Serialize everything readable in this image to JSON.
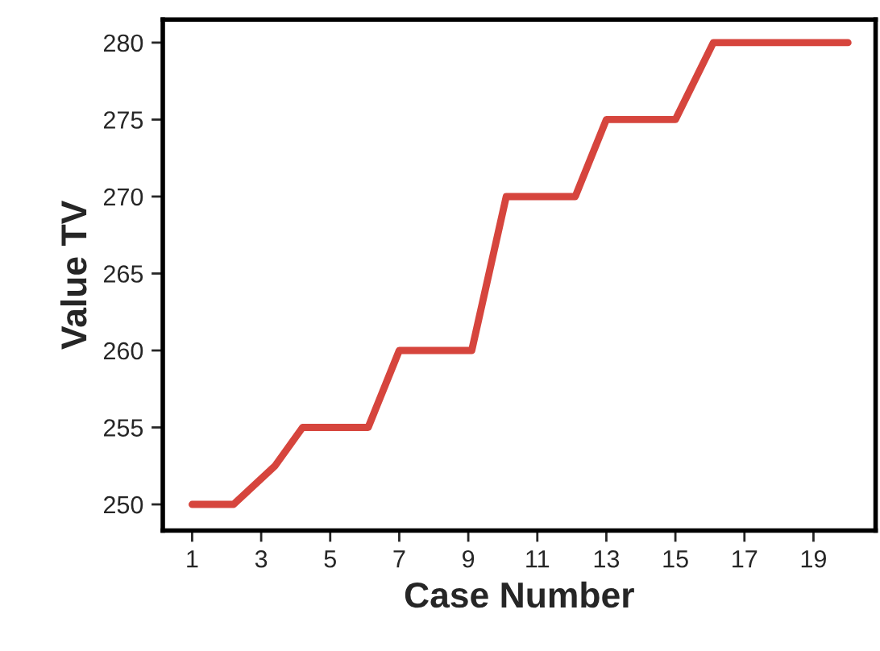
{
  "chart_data": {
    "type": "line",
    "xlabel": "Case Number",
    "ylabel": "Value TV",
    "x": [
      1,
      2.2,
      3.4,
      4.2,
      6.1,
      7,
      9.1,
      10.1,
      12.1,
      13,
      15,
      16.1,
      20
    ],
    "series": [
      {
        "color": "#d6453d",
        "values": [
          250,
          250,
          252.5,
          255,
          255,
          260,
          260,
          270,
          270,
          275,
          275,
          280,
          280
        ]
      }
    ],
    "xlim": [
      0.15,
      20.8
    ],
    "xticks": [
      1,
      3,
      5,
      7,
      9,
      11,
      13,
      15,
      17,
      19
    ],
    "ylim": [
      248.3,
      281.5
    ],
    "yticks": [
      250,
      255,
      260,
      265,
      270,
      275,
      280
    ],
    "grid": false,
    "legend": false,
    "marker": "none",
    "line_style": "solid"
  }
}
